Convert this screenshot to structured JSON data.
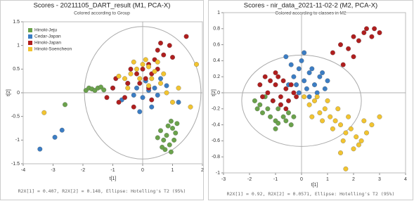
{
  "chart_data": [
    {
      "type": "scatter",
      "title": "Scores - 20211105_DART_result (M1, PCA-X)",
      "subtitle": "Colored according to Group",
      "x_label": "t[1]",
      "y_label": "t[2]",
      "footnote": "R2X[1] = 0.407, R2X[2] = 0.148, Ellipse: Hotelling's T2 (95%)",
      "xlim": [
        -4,
        2
      ],
      "ylim": [
        -1.5,
        1.5
      ],
      "xticks": [
        -4,
        -3,
        -2,
        -1,
        0,
        1,
        2
      ],
      "yticks": [
        -1.5,
        -1,
        -0.5,
        0,
        0.5,
        1,
        1.5
      ],
      "ellipse": {
        "cx": 0,
        "cy": 0,
        "rx": 1.95,
        "ry": 1.4
      },
      "legend": "top-left",
      "series": [
        {
          "name": "Hinoki-Jeju",
          "color": "#6aa24b",
          "x": [
            -1.9,
            -1.8,
            -1.7,
            -1.6,
            -1.5,
            -1.4,
            -1.3,
            -2.6,
            0.6,
            0.7,
            0.8,
            0.9,
            1.0,
            1.1,
            0.75,
            0.95,
            1.05,
            0.85,
            0.65,
            1.15,
            0.5,
            0.95
          ],
          "y": [
            0.05,
            0.1,
            0.08,
            0.05,
            0.1,
            0.12,
            0.06,
            -0.25,
            -0.8,
            -1.0,
            -0.9,
            -1.1,
            -0.75,
            -0.85,
            -1.2,
            -0.6,
            -1.0,
            -0.7,
            -1.15,
            -0.65,
            -0.95,
            -1.25
          ]
        },
        {
          "name": "Cedar-Japan",
          "color": "#3b7dc4",
          "x": [
            -3.44,
            -2.94,
            -2.7,
            0,
            0.2,
            -0.2,
            -0.5,
            -1.0,
            0.4,
            0.3,
            -0.1,
            0.6,
            -0.3,
            0.1,
            1.2,
            0.8,
            -0.7,
            0.5
          ],
          "y": [
            -1.19,
            -0.94,
            -0.79,
            -0.1,
            0.05,
            0.1,
            0.2,
            0.1,
            0.1,
            -0.3,
            -0.4,
            0.3,
            -0.05,
            0.25,
            -0.2,
            0.15,
            -0.15,
            -0.05
          ]
        },
        {
          "name": "Hinoki-Japan",
          "color": "#b01e1e",
          "x": [
            1.46,
            0.9,
            0.5,
            0,
            0.2,
            -0.2,
            -0.5,
            -1.0,
            -1.2,
            -0.8,
            0.1,
            0.3,
            -0.4,
            0.4,
            0.7,
            -0.1,
            -0.6,
            -0.3,
            0.2,
            0.5,
            -0.9,
            1.0,
            0.6,
            0.3
          ],
          "y": [
            1.19,
            1.0,
            0.9,
            0.5,
            0.6,
            0.4,
            0.2,
            0.1,
            -0.1,
            -0.2,
            0.3,
            0.4,
            0.5,
            0.7,
            0.8,
            0.2,
            -0.1,
            -0.3,
            0.1,
            0.5,
            0.3,
            0.75,
            1.05,
            -0.15
          ]
        },
        {
          "name": "Hinoki-Soencheon",
          "color": "#f2c430",
          "x": [
            -3.3,
            -0.2,
            0,
            0.2,
            0.4,
            -0.4,
            -0.1,
            0.3,
            0.6,
            0.8,
            1.0,
            1.2,
            -0.5,
            0.1,
            -0.3,
            0.5,
            1.8,
            1.6,
            0.7,
            -0.6,
            0.2,
            -0.8
          ],
          "y": [
            -0.42,
            0.5,
            0.6,
            0.55,
            0.45,
            0.4,
            0.3,
            0.3,
            0.2,
            0,
            -0.2,
            0.1,
            0.1,
            0.7,
            0.65,
            0.65,
            0.6,
            -0.3,
            0.4,
            0.3,
            0.15,
            0.35
          ]
        }
      ]
    },
    {
      "type": "scatter",
      "title": "Scores - nir_data_2021-11-02-2 (M2, PCA-X)",
      "subtitle": "Colored according to classes in M2",
      "x_label": "t[1]",
      "y_label": "t[2]",
      "footnote": "R2X[1] = 0.92, R2X[2] = 0.0571, Ellipse: Hotelling's T2 (95%)",
      "xlim": [
        -3,
        4
      ],
      "ylim": [
        -1,
        1
      ],
      "xticks": [
        -3,
        -2,
        -1,
        0,
        1,
        2,
        3,
        4
      ],
      "yticks": [
        -1,
        -0.8,
        -0.6,
        -0.4,
        -0.2,
        0,
        0.2,
        0.4,
        0.6,
        0.8,
        1
      ],
      "ellipse": {
        "cx": 0,
        "cy": -0.1,
        "rx": 2.3,
        "ry": 0.57
      },
      "series": [
        {
          "color": "#6aa24b",
          "x": [
            -1.8,
            -1.6,
            -1.5,
            -1.3,
            -1.2,
            -1.0,
            -0.9,
            -0.7,
            -0.5,
            -0.4,
            -1.4,
            -1.1,
            -0.8,
            -0.6,
            -1.7,
            -1.0,
            -0.3,
            -0.9
          ],
          "y": [
            -0.1,
            -0.15,
            -0.25,
            -0.2,
            -0.3,
            -0.35,
            -0.2,
            -0.3,
            -0.25,
            -0.4,
            -0.05,
            -0.1,
            -0.15,
            -0.35,
            -0.2,
            -0.45,
            -0.3,
            -0.38
          ]
        },
        {
          "color": "#3b7dc4",
          "x": [
            -0.5,
            -0.3,
            -0.1,
            0.1,
            0.3,
            0.5,
            0.7,
            0.9,
            -0.4,
            0,
            0.2,
            0.4,
            0.6,
            -0.2,
            0.8,
            1.0,
            -0.6,
            0.1,
            0.3,
            -0.1
          ],
          "y": [
            0.1,
            0.2,
            0.3,
            0.15,
            0.25,
            0.1,
            0.2,
            0.05,
            0.35,
            0.4,
            0.05,
            0.3,
            0.0,
            0.1,
            0.25,
            0.15,
            0.45,
            0.5,
            -0.05,
            0.0
          ]
        },
        {
          "color": "#b01e1e",
          "x": [
            -1.6,
            -1.4,
            -1.3,
            -1.2,
            -1.1,
            -1.0,
            -0.9,
            -0.8,
            -0.7,
            -0.6,
            -0.5,
            -0.4,
            -0.3,
            -0.2,
            -1.5,
            -1.0,
            -0.8,
            -0.6,
            1.2,
            1.5,
            1.8,
            2.0,
            2.2,
            2.4,
            2.5,
            2.7,
            2.8,
            2.0,
            1.6,
            3.0
          ],
          "y": [
            0.1,
            0.2,
            0.0,
            0.15,
            -0.1,
            0.1,
            0.2,
            -0.05,
            0.15,
            0.05,
            -0.1,
            0.1,
            0.0,
            -0.05,
            -0.05,
            0.25,
            -0.15,
            -0.2,
            0.5,
            0.6,
            0.55,
            0.7,
            0.65,
            0.75,
            0.8,
            0.7,
            0.8,
            0.45,
            0.35,
            0.75
          ]
        },
        {
          "color": "#f2c430",
          "x": [
            0.1,
            0.3,
            0.5,
            0.7,
            0.9,
            1.1,
            1.3,
            1.5,
            1.7,
            1.9,
            2.1,
            2.3,
            2.5,
            2.7,
            0.4,
            0.8,
            1.2,
            1.6,
            2.0,
            2.4,
            1.0,
            1.4,
            1.8,
            2.2,
            3.0,
            1.7,
            0.6,
            1.5
          ],
          "y": [
            -0.05,
            -0.15,
            -0.1,
            -0.25,
            -0.2,
            -0.3,
            -0.35,
            -0.4,
            -0.5,
            -0.45,
            -0.55,
            -0.6,
            -0.5,
            -0.4,
            -0.3,
            -0.35,
            -0.45,
            -0.6,
            -0.7,
            -0.35,
            -0.1,
            -0.2,
            -0.3,
            -0.65,
            -0.3,
            -0.95,
            -0.05,
            -0.75
          ]
        }
      ]
    }
  ]
}
